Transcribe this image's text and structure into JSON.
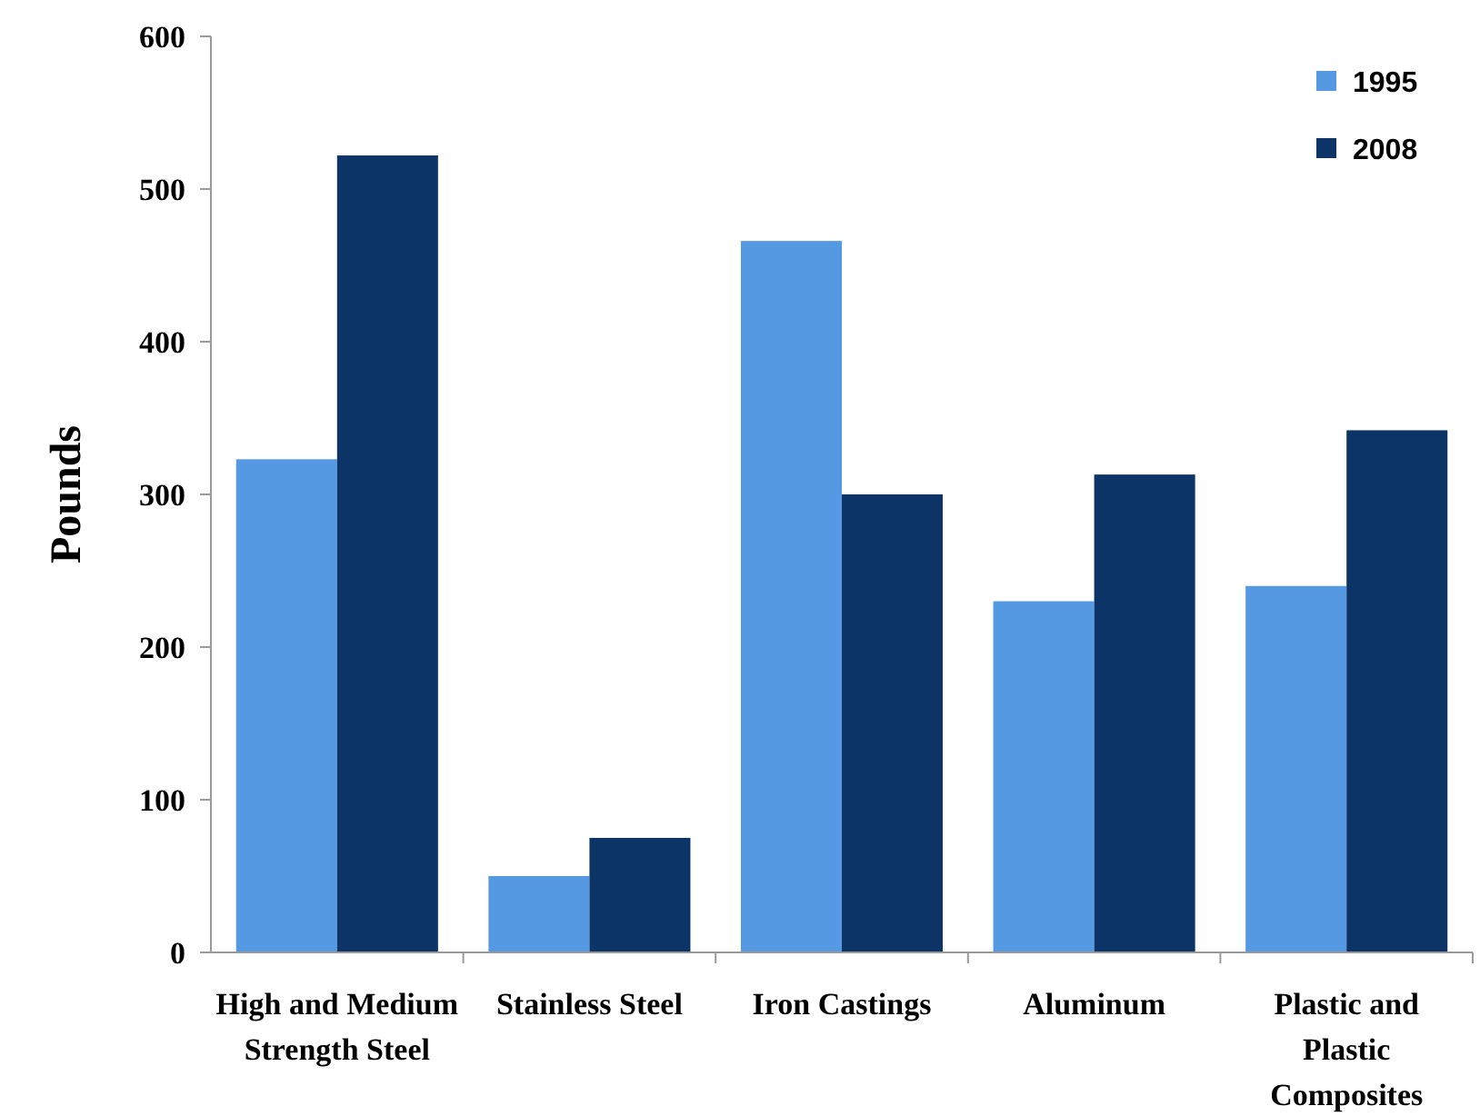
{
  "chart_data": {
    "type": "bar",
    "ylabel": "Pounds",
    "categories": [
      "High and Medium Strength Steel",
      "Stainless Steel",
      "Iron Castings",
      "Aluminum",
      "Plastic and Plastic Composites"
    ],
    "series": [
      {
        "name": "1995",
        "color": "#5499e2",
        "values": [
          323,
          50,
          466,
          230,
          240
        ]
      },
      {
        "name": "2008",
        "color": "#0d3466",
        "values": [
          522,
          75,
          300,
          313,
          342
        ]
      }
    ],
    "ylim": [
      0,
      600
    ],
    "yticks": [
      0,
      100,
      200,
      300,
      400,
      500,
      600
    ],
    "legend": "top right"
  }
}
